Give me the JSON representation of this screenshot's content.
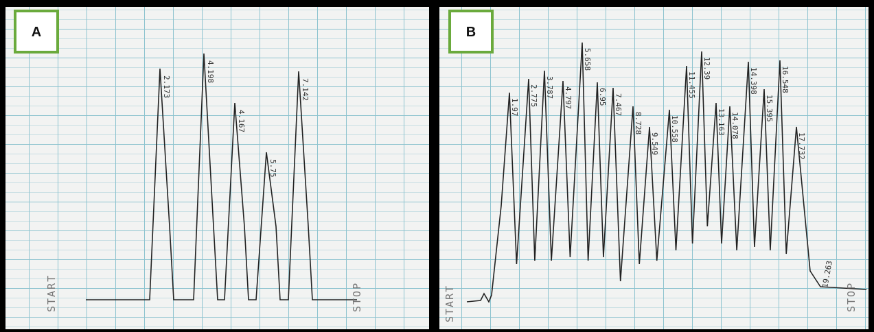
{
  "panels": [
    {
      "label": "A",
      "start": "START",
      "stop": "STOP",
      "peaks": [
        "2.173",
        "4.198",
        "4.167",
        "5.75",
        "7.142"
      ]
    },
    {
      "label": "B",
      "start": "START",
      "stop": "STOP",
      "end_time": "19.263",
      "peaks": [
        "1.97",
        "2.775",
        "3.787",
        "4.797",
        "5.658",
        "6.95",
        "7.467",
        "8.728",
        "9.549",
        "10.558",
        "11.455",
        "12.39",
        "13.163",
        "14.078",
        "14.398",
        "15.395",
        "16.548",
        "17.732"
      ]
    }
  ]
}
